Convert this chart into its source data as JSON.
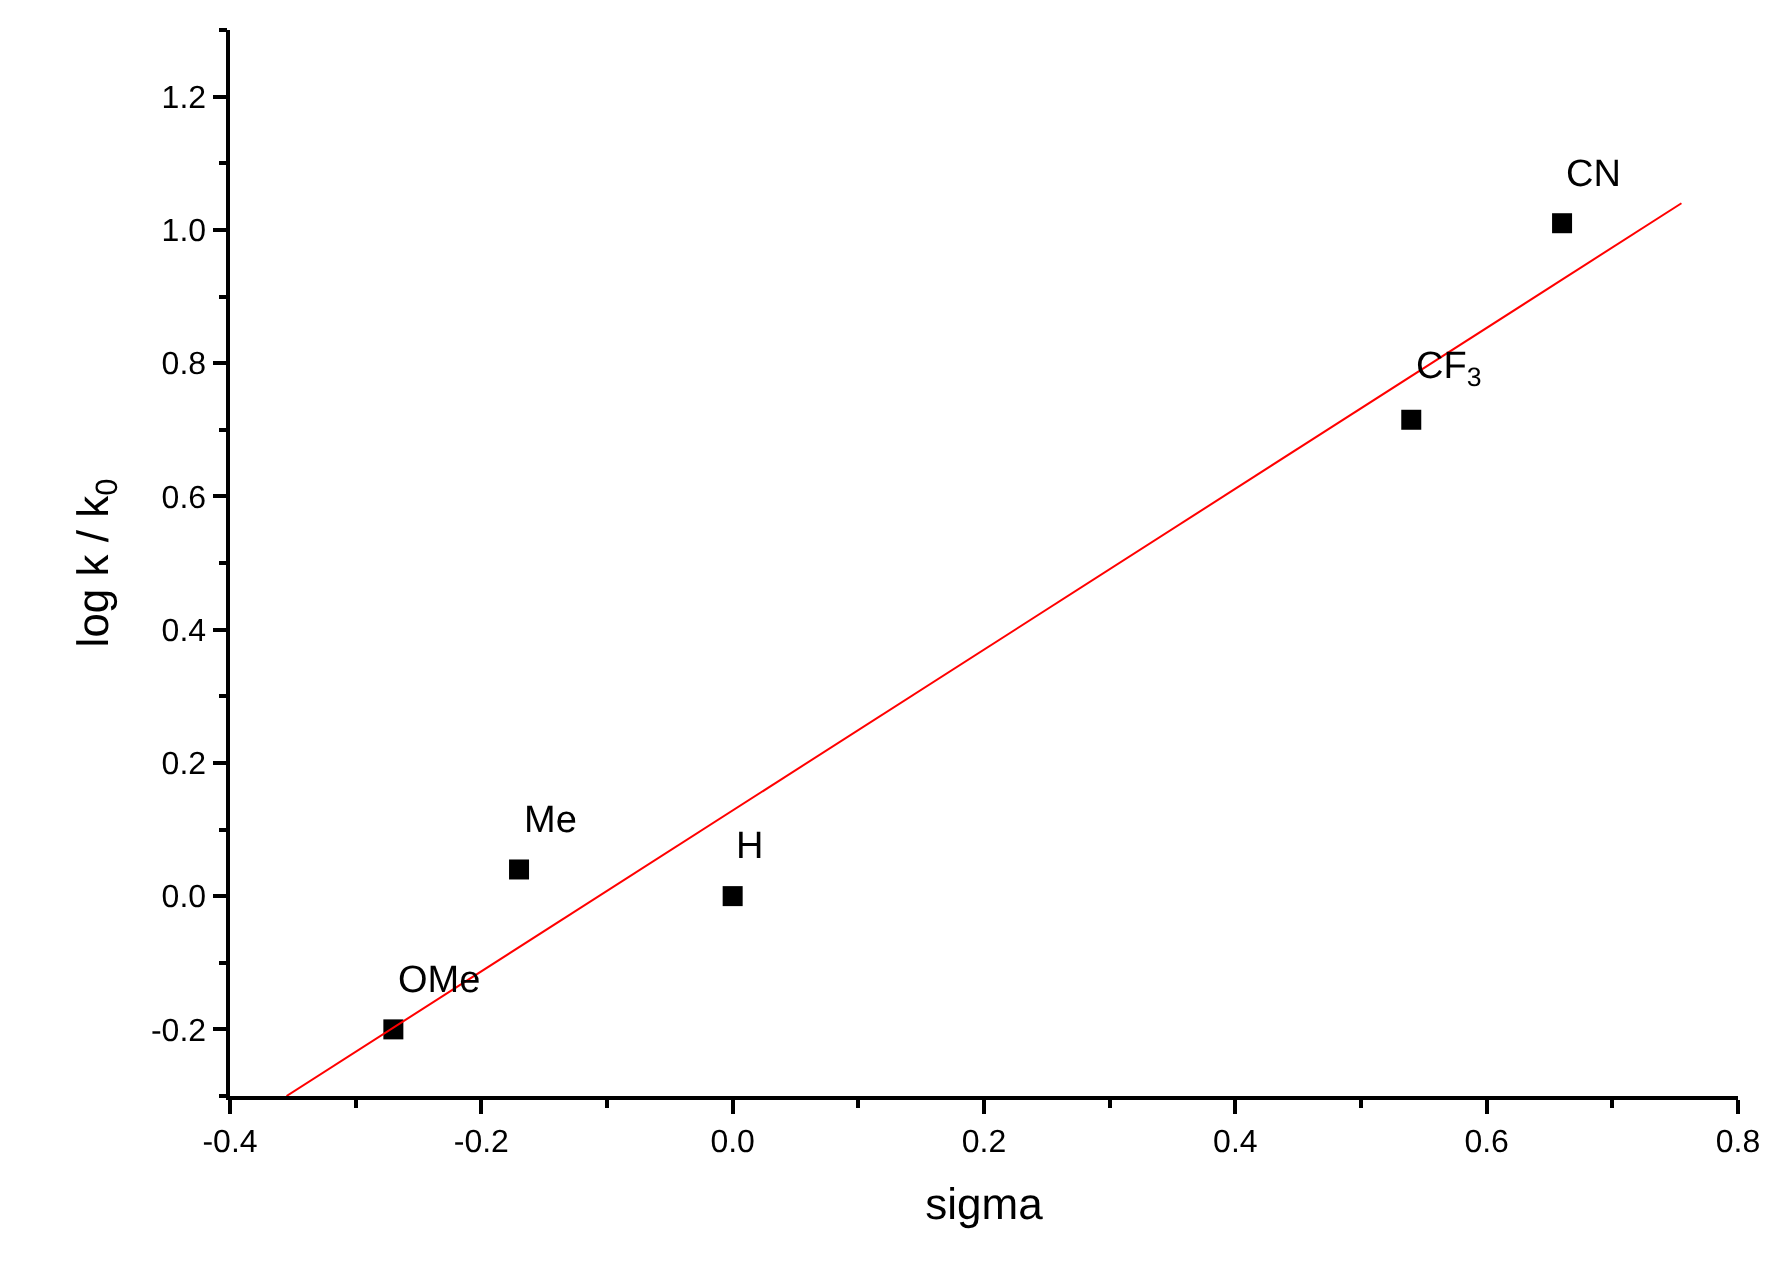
{
  "chart_data": {
    "type": "scatter",
    "xlabel": "sigma",
    "ylabel": "log k / k$_{0}$",
    "series": [
      {
        "color": "#000000",
        "marker": "square",
        "x": [
          -0.27,
          -0.17,
          0.0,
          0.54,
          0.66
        ],
        "values": [
          -0.2,
          0.04,
          0.0,
          0.715,
          1.01
        ]
      },
      {
        "type": "line",
        "color": "#ff0000",
        "x": [
          -0.355,
          0.755
        ],
        "values": [
          -0.3,
          1.04
        ]
      }
    ],
    "annotations": [
      {
        "text": "OMe",
        "x": -0.27,
        "y": -0.2
      },
      {
        "text": "Me",
        "x": -0.17,
        "y": 0.04
      },
      {
        "text": "H",
        "x": 0.0,
        "y": 0.0
      },
      {
        "text": "CF$_{3}$",
        "x": 0.54,
        "y": 0.715
      },
      {
        "text": "CN",
        "x": 0.66,
        "y": 1.01
      }
    ],
    "xlim": [
      -0.4,
      0.8
    ],
    "xticks": [
      -0.4,
      {
        "value": -0.3,
        "label": null
      },
      -0.2,
      {
        "value": -0.1,
        "label": null
      },
      {
        "value": 0,
        "label": "0.0"
      },
      {
        "value": 0.1,
        "label": null
      },
      0.2,
      {
        "value": 0.3,
        "label": null
      },
      0.4,
      {
        "value": 0.5,
        "label": null
      },
      0.6,
      {
        "value": 0.7,
        "label": null
      },
      0.8
    ],
    "ylim": [
      -0.3,
      1.3
    ],
    "yticks": [
      {
        "value": -0.3,
        "label": null
      },
      -0.2,
      {
        "value": -0.1,
        "label": null
      },
      {
        "value": 0,
        "label": "0.0"
      },
      {
        "value": 0.1,
        "label": null
      },
      0.2,
      {
        "value": 0.3,
        "label": null
      },
      0.4,
      {
        "value": 0.5,
        "label": null
      },
      0.6,
      {
        "value": 0.7,
        "label": null
      },
      0.8,
      {
        "value": 0.9,
        "label": null
      },
      {
        "value": 1,
        "label": "1.0"
      },
      {
        "value": 1.1,
        "label": null
      },
      1.2,
      {
        "value": 1.3,
        "label": null
      }
    ]
  }
}
